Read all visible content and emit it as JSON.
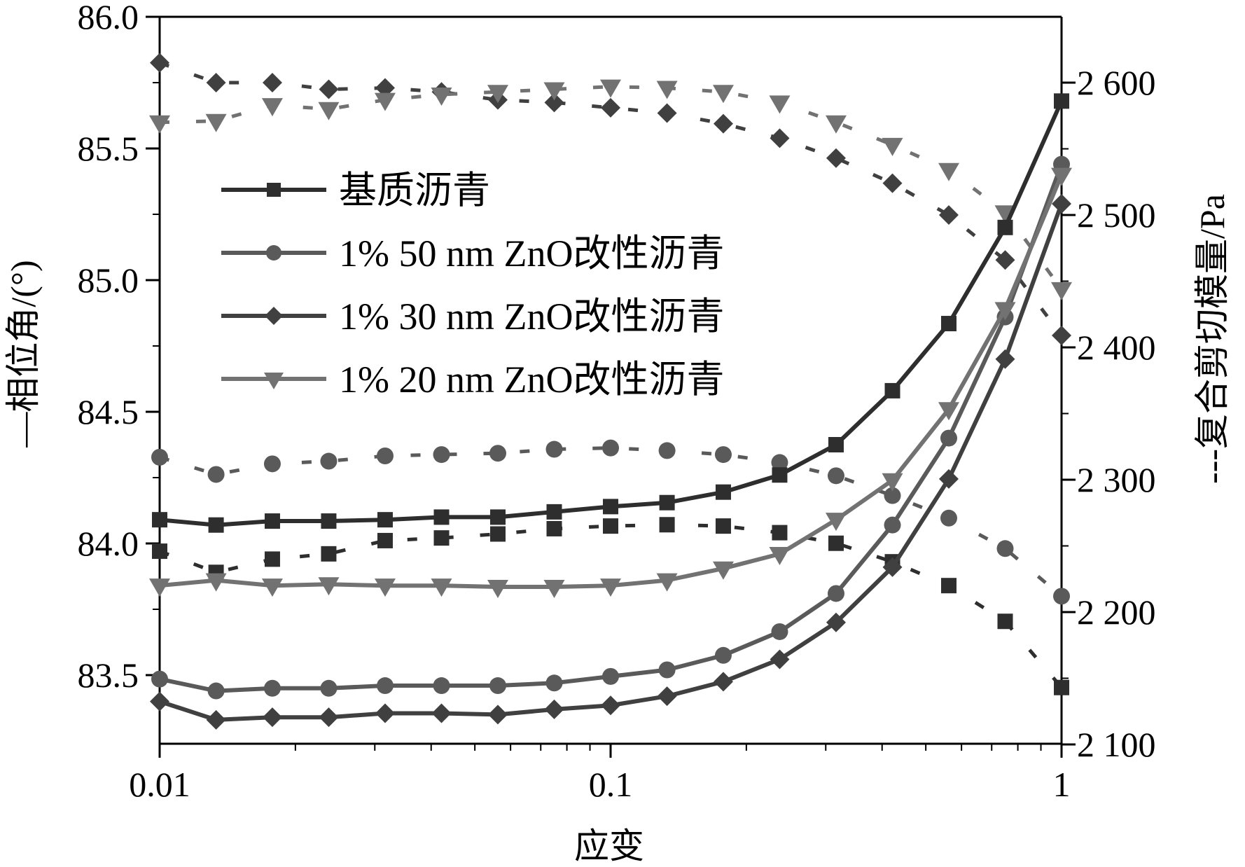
{
  "chart_data": {
    "type": "line",
    "title": "",
    "xlabel": "应变",
    "ylabel": "—相位角/(°)",
    "y2label": "---复合剪切模量/Pa",
    "xscale": "log",
    "xlim": [
      0.01,
      1
    ],
    "ylim": [
      83.24,
      86.0
    ],
    "y2lim": [
      2100,
      2648
    ],
    "xticks": [
      {
        "value": 0.01,
        "label": "0.01"
      },
      {
        "value": 0.1,
        "label": "0.1"
      },
      {
        "value": 1,
        "label": "1"
      }
    ],
    "yticks": [
      {
        "value": 83.5,
        "label": "83.5"
      },
      {
        "value": 84.0,
        "label": "84.0"
      },
      {
        "value": 84.5,
        "label": "84.5"
      },
      {
        "value": 85.0,
        "label": "85.0"
      },
      {
        "value": 85.5,
        "label": "85.5"
      },
      {
        "value": 86.0,
        "label": "86.0"
      }
    ],
    "y2ticks": [
      {
        "value": 2100,
        "label": "2 100"
      },
      {
        "value": 2200,
        "label": "2 200"
      },
      {
        "value": 2300,
        "label": "2 300"
      },
      {
        "value": 2400,
        "label": "2 400"
      },
      {
        "value": 2500,
        "label": "2 500"
      },
      {
        "value": 2600,
        "label": "2 600"
      }
    ],
    "legend_position": "upper-left",
    "grid": false,
    "x": [
      0.01,
      0.01334,
      0.01778,
      0.02371,
      0.03162,
      0.04217,
      0.05623,
      0.07499,
      0.1,
      0.1334,
      0.1778,
      0.2371,
      0.3162,
      0.4217,
      0.5623,
      0.7499,
      1.0
    ],
    "series": [
      {
        "name": "基质沥青",
        "axis": "left",
        "style": "solid",
        "marker": "square",
        "color": "#2e2e2e",
        "values": [
          84.09,
          84.07,
          84.085,
          84.085,
          84.09,
          84.1,
          84.1,
          84.12,
          84.14,
          84.155,
          84.195,
          84.26,
          84.375,
          84.58,
          84.835,
          85.2,
          85.68
        ]
      },
      {
        "name": "1% 50 nm ZnO改性沥青",
        "axis": "left",
        "style": "solid",
        "marker": "circle",
        "color": "#5a5a5a",
        "values": [
          83.485,
          83.44,
          83.45,
          83.45,
          83.46,
          83.46,
          83.46,
          83.47,
          83.495,
          83.52,
          83.575,
          83.665,
          83.81,
          84.07,
          84.4,
          84.86,
          85.44
        ]
      },
      {
        "name": "1% 30 nm ZnO改性沥青",
        "axis": "left",
        "style": "solid",
        "marker": "diamond",
        "color": "#404040",
        "values": [
          83.4,
          83.33,
          83.34,
          83.34,
          83.355,
          83.355,
          83.35,
          83.37,
          83.385,
          83.42,
          83.475,
          83.56,
          83.7,
          83.91,
          84.245,
          84.7,
          85.29
        ]
      },
      {
        "name": "1% 20 nm ZnO改性沥青",
        "axis": "left",
        "style": "solid",
        "marker": "triangle-down",
        "color": "#727272",
        "values": [
          83.84,
          83.86,
          83.84,
          83.845,
          83.84,
          83.84,
          83.835,
          83.835,
          83.84,
          83.86,
          83.905,
          83.96,
          84.09,
          84.24,
          84.51,
          84.89,
          85.4
        ]
      },
      {
        "name": "基质沥青 (复合剪切模量)",
        "axis": "right",
        "style": "dashed",
        "marker": "square",
        "color": "#2e2e2e",
        "values": [
          2246,
          2230,
          2240,
          2244,
          2254,
          2256,
          2259,
          2263,
          2265,
          2266,
          2265,
          2260,
          2252,
          2238,
          2220,
          2193,
          2143
        ]
      },
      {
        "name": "1% 50 nm ZnO改性沥青 (复合剪切模量)",
        "axis": "right",
        "style": "dashed",
        "marker": "circle",
        "color": "#5a5a5a",
        "values": [
          2317,
          2304,
          2312,
          2314,
          2318,
          2319,
          2320,
          2323,
          2324,
          2322,
          2319,
          2313,
          2303,
          2288,
          2271,
          2248,
          2212
        ]
      },
      {
        "name": "1% 30 nm ZnO改性沥青 (复合剪切模量)",
        "axis": "right",
        "style": "dashed",
        "marker": "diamond",
        "color": "#404040",
        "values": [
          2615,
          2600,
          2600,
          2595,
          2596,
          2593,
          2587,
          2585,
          2581,
          2577,
          2569,
          2558,
          2543,
          2524,
          2500,
          2466,
          2409
        ]
      },
      {
        "name": "1% 20 nm ZnO改性沥青 (复合剪切模量)",
        "axis": "right",
        "style": "dashed",
        "marker": "triangle-down",
        "color": "#727272",
        "values": [
          2570,
          2571,
          2583,
          2580,
          2587,
          2591,
          2593,
          2595,
          2597,
          2596,
          2593,
          2585,
          2570,
          2553,
          2534,
          2502,
          2444
        ]
      }
    ]
  },
  "legend": {
    "items": [
      {
        "label": "基质沥青",
        "marker": "square",
        "color": "#2e2e2e"
      },
      {
        "label": "1% 50 nm ZnO改性沥青",
        "marker": "circle",
        "color": "#5a5a5a"
      },
      {
        "label": "1% 30 nm ZnO改性沥青",
        "marker": "diamond",
        "color": "#404040"
      },
      {
        "label": "1% 20 nm ZnO改性沥青",
        "marker": "triangle-down",
        "color": "#727272"
      }
    ]
  }
}
